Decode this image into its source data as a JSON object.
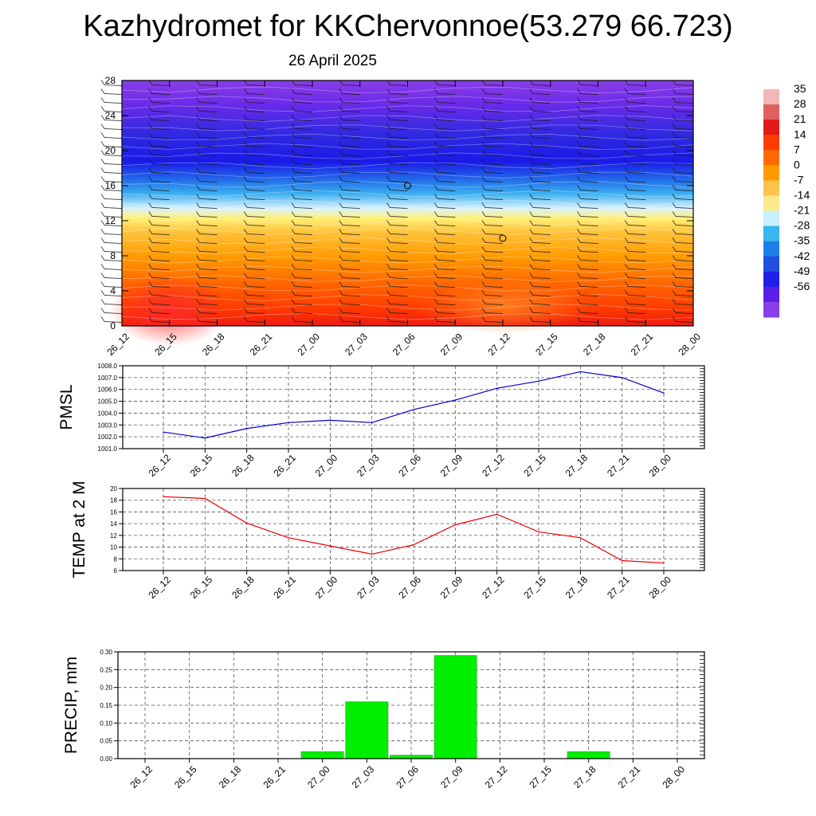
{
  "header": {
    "title": "Kazhydromet for KKChervonnoe(53.279 66.723)",
    "subtitle": "26 April 2025"
  },
  "time_labels": [
    "26_12",
    "26_15",
    "26_18",
    "26_21",
    "27_00",
    "27_03",
    "27_06",
    "27_09",
    "27_12",
    "27_15",
    "27_18",
    "27_21",
    "28_00"
  ],
  "colorbar": {
    "labels": [
      "35",
      "28",
      "21",
      "14",
      "7",
      "0",
      "-7",
      "-14",
      "-21",
      "-28",
      "-35",
      "-42",
      "-49",
      "-56"
    ],
    "colors": [
      "#f2b6b6",
      "#e06060",
      "#e21a1a",
      "#ff3c00",
      "#ff6a00",
      "#ff9900",
      "#ffc24a",
      "#ffe98a",
      "#c8f0ff",
      "#37b6f0",
      "#1a7fe6",
      "#2050e0",
      "#2020e8",
      "#5a20e8",
      "#8a3ee8"
    ]
  },
  "chart_data": [
    {
      "type": "heatmap",
      "title": "",
      "x": [
        "26_12",
        "26_15",
        "26_18",
        "26_21",
        "27_00",
        "27_03",
        "27_06",
        "27_09",
        "27_12",
        "27_15",
        "27_18",
        "27_21",
        "28_00"
      ],
      "ylim": [
        0,
        28
      ],
      "yticks": [
        "0",
        "4",
        "8",
        "12",
        "16",
        "20",
        "24",
        "28"
      ],
      "note_values": "temperature shading by height level (colour scale -56 to 35)"
    },
    {
      "type": "line",
      "ylabel": "PMSL",
      "x": [
        "26_12",
        "26_15",
        "26_18",
        "26_21",
        "27_00",
        "27_03",
        "27_06",
        "27_09",
        "27_12",
        "27_15",
        "27_18",
        "27_21",
        "28_00"
      ],
      "values": [
        1002.4,
        1001.9,
        1002.7,
        1003.2,
        1003.4,
        1003.2,
        1004.3,
        1005.1,
        1006.1,
        1006.7,
        1007.5,
        1007.0,
        1005.7
      ],
      "ylim": [
        1001.0,
        1008.0
      ],
      "yticks": [
        "1001.0",
        "1002.0",
        "1003.0",
        "1004.0",
        "1005.0",
        "1006.0",
        "1007.0",
        "1008.0"
      ],
      "color": "#0000cc"
    },
    {
      "type": "line",
      "ylabel": "TEMP at 2 M",
      "x": [
        "26_12",
        "26_15",
        "26_18",
        "26_21",
        "27_00",
        "27_03",
        "27_06",
        "27_09",
        "27_12",
        "27_15",
        "27_18",
        "27_21",
        "28_00"
      ],
      "values": [
        18.6,
        18.3,
        14.1,
        11.6,
        10.2,
        8.8,
        10.4,
        13.8,
        15.6,
        12.6,
        11.6,
        7.7,
        7.3
      ],
      "ylim": [
        6,
        20
      ],
      "yticks": [
        "6",
        "8",
        "10",
        "12",
        "14",
        "16",
        "18",
        "20"
      ],
      "color": "#ee0000"
    },
    {
      "type": "bar",
      "ylabel": "PRECIP, mm",
      "categories": [
        "26_12",
        "26_15",
        "26_18",
        "26_21",
        "27_00",
        "27_03",
        "27_06",
        "27_09",
        "27_12",
        "27_15",
        "27_18",
        "27_21",
        "28_00"
      ],
      "values": [
        0,
        0,
        0,
        0,
        0.02,
        0.16,
        0.01,
        0.29,
        0,
        0,
        0.02,
        0,
        0
      ],
      "ylim": [
        0,
        0.3
      ],
      "yticks": [
        "0.00",
        "0.05",
        "0.10",
        "0.15",
        "0.20",
        "0.25",
        "0.30"
      ],
      "color": "#00ee00"
    }
  ]
}
